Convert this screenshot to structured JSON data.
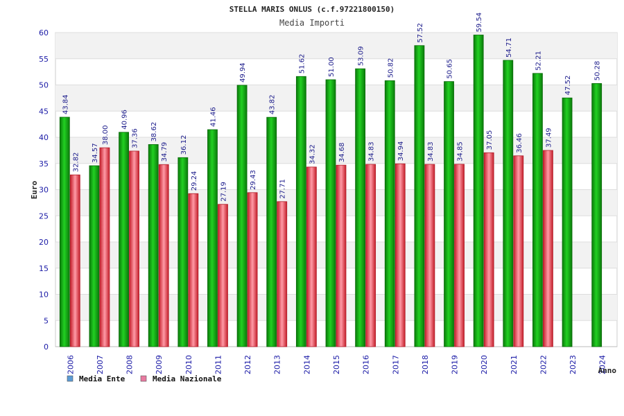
{
  "chart_data": {
    "type": "bar",
    "title": "STELLA MARIS ONLUS (c.f.97221800150)",
    "subtitle": "Media Importi",
    "xlabel": "Anno",
    "ylabel": "Euro",
    "ylim": [
      0,
      60
    ],
    "yticks": [
      0,
      5,
      10,
      15,
      20,
      25,
      30,
      35,
      40,
      45,
      50,
      55,
      60
    ],
    "grid": true,
    "legend_position": "bottom-left",
    "categories": [
      "2006",
      "2007",
      "2008",
      "2009",
      "2010",
      "2011",
      "2012",
      "2013",
      "2014",
      "2015",
      "2016",
      "2017",
      "2018",
      "2019",
      "2020",
      "2021",
      "2022",
      "2023",
      "2024"
    ],
    "series": [
      {
        "name": "Media Ente",
        "color": "#1bb31b",
        "legend_color": "#5b9bd5",
        "values": [
          43.84,
          34.57,
          40.96,
          38.62,
          36.12,
          41.46,
          49.94,
          43.82,
          51.62,
          51.0,
          53.09,
          50.82,
          57.52,
          50.65,
          59.54,
          54.71,
          52.21,
          47.52,
          50.28
        ],
        "labels": [
          "43.84",
          "34.57",
          "40.96",
          "38.62",
          "36.12",
          "41.46",
          "49.94",
          "43.82",
          "51.62",
          "51.00",
          "53.09",
          "50.82",
          "57.52",
          "50.65",
          "59.54",
          "54.71",
          "52.21",
          "47.52",
          "50.28"
        ]
      },
      {
        "name": "Media Nazionale",
        "color": "#e0303a",
        "legend_color": "#e87aa0",
        "values": [
          32.82,
          38.0,
          37.36,
          34.79,
          29.24,
          27.19,
          29.43,
          27.71,
          34.32,
          34.68,
          34.83,
          34.94,
          34.83,
          34.85,
          37.05,
          36.46,
          37.49,
          null,
          null
        ],
        "labels": [
          "32.82",
          "38.00",
          "37.36",
          "34.79",
          "29.24",
          "27.19",
          "29.43",
          "27.71",
          "34.32",
          "34.68",
          "34.83",
          "34.94",
          "34.83",
          "34.85",
          "37.05",
          "36.46",
          "37.49",
          null,
          null
        ]
      }
    ]
  }
}
